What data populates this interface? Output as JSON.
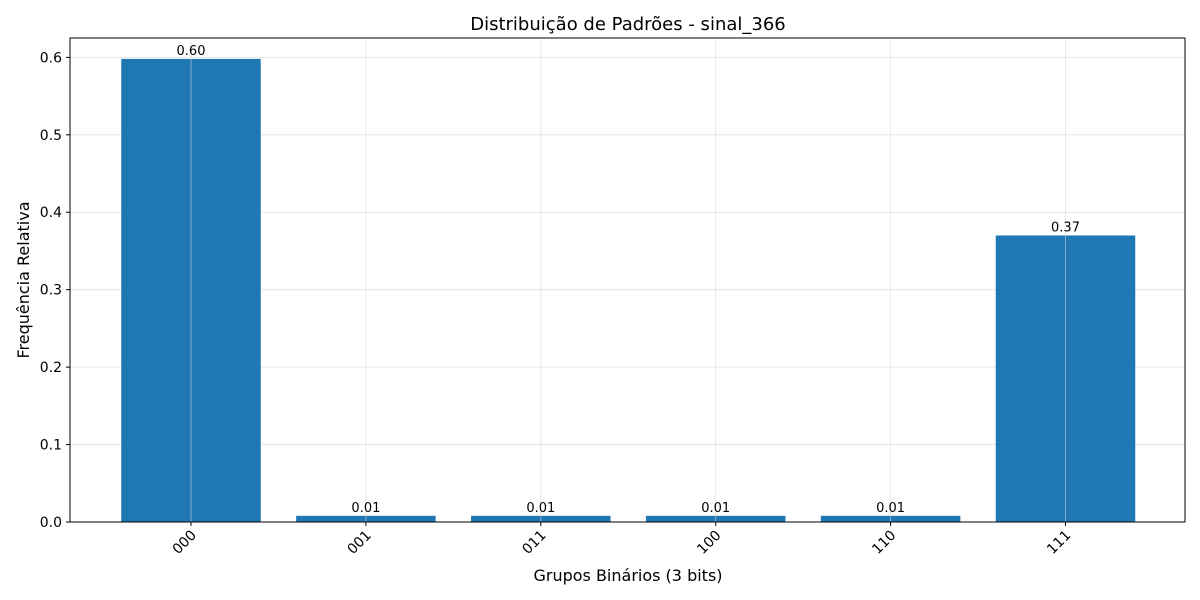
{
  "chart_data": {
    "type": "bar",
    "title": "Distribuição de Padrões - sinal_366",
    "xlabel": "Grupos Binários (3 bits)",
    "ylabel": "Frequência Relativa",
    "categories": [
      "000",
      "001",
      "011",
      "100",
      "110",
      "111"
    ],
    "values": [
      0.598,
      0.008,
      0.008,
      0.008,
      0.008,
      0.37
    ],
    "data_labels": [
      "0.60",
      "0.01",
      "0.01",
      "0.01",
      "0.01",
      "0.37"
    ],
    "ylim": [
      0,
      0.625
    ],
    "yticks": [
      "0.0",
      "0.1",
      "0.2",
      "0.3",
      "0.4",
      "0.5",
      "0.6"
    ],
    "bar_color": "#1f77b4",
    "grid": true,
    "xtick_rotation": "45 degrees"
  }
}
